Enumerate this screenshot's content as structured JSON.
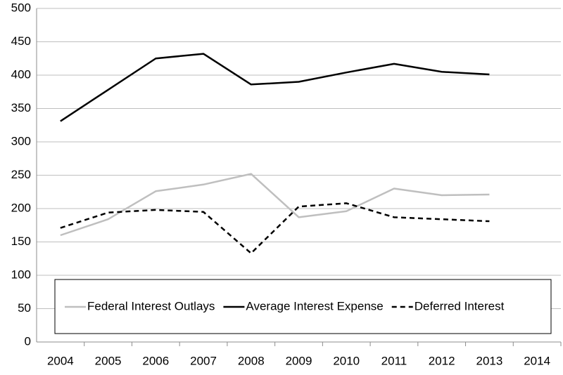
{
  "chart_data": {
    "type": "line",
    "categories": [
      "2004",
      "2005",
      "2006",
      "2007",
      "2008",
      "2009",
      "2010",
      "2011",
      "2012",
      "2013",
      "2014"
    ],
    "series": [
      {
        "name": "Federal Interest Outlays",
        "color": "#bfbfbf",
        "dashed": false,
        "values": [
          160,
          184,
          226,
          236,
          252,
          187,
          196,
          230,
          220,
          221,
          null
        ]
      },
      {
        "name": "Average Interest Expense",
        "color": "#000000",
        "dashed": false,
        "values": [
          331,
          378,
          425,
          432,
          386,
          390,
          404,
          417,
          405,
          401,
          null
        ]
      },
      {
        "name": "Deferred Interest",
        "color": "#000000",
        "dashed": true,
        "values": [
          171,
          194,
          198,
          195,
          133,
          203,
          208,
          187,
          184,
          181,
          null
        ]
      }
    ],
    "ylim": [
      0,
      500
    ],
    "yticks": [
      0,
      50,
      100,
      150,
      200,
      250,
      300,
      350,
      400,
      450,
      500
    ],
    "grid": true,
    "legend": "bottom"
  }
}
